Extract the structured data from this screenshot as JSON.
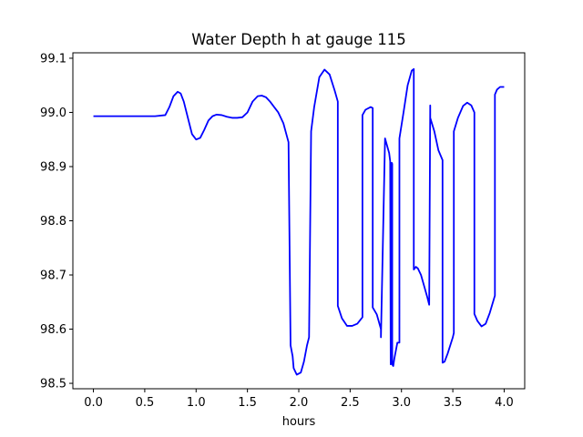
{
  "chart_data": {
    "type": "line",
    "title": "Water Depth h at gauge 115",
    "xlabel": "hours",
    "ylabel": "",
    "xlim": [
      -0.2,
      4.2
    ],
    "ylim": [
      98.49,
      99.11
    ],
    "xticks": [
      0.0,
      0.5,
      1.0,
      1.5,
      2.0,
      2.5,
      3.0,
      3.5,
      4.0
    ],
    "xtick_labels": [
      "0.0",
      "0.5",
      "1.0",
      "1.5",
      "2.0",
      "2.5",
      "3.0",
      "3.5",
      "4.0"
    ],
    "yticks": [
      98.5,
      98.6,
      98.7,
      98.8,
      98.9,
      99.0,
      99.1
    ],
    "ytick_labels": [
      "98.5",
      "98.6",
      "98.7",
      "98.8",
      "98.9",
      "99.0",
      "99.1"
    ],
    "grid": false,
    "legend": "none",
    "line_color": "#0000ff",
    "series": [
      {
        "x": [
          0.0,
          0.2,
          0.4,
          0.6,
          0.7,
          0.74,
          0.78,
          0.82,
          0.85,
          0.88,
          0.92,
          0.96,
          1.0,
          1.04,
          1.08,
          1.12,
          1.16,
          1.2,
          1.25,
          1.3,
          1.35,
          1.4,
          1.45,
          1.5,
          1.55,
          1.6,
          1.64,
          1.68,
          1.72,
          1.76,
          1.8,
          1.85,
          1.9,
          1.92,
          1.94,
          1.95,
          1.98,
          2.02,
          2.05,
          2.08,
          2.1,
          2.12,
          2.15,
          2.2,
          2.25,
          2.3,
          2.35,
          2.38,
          2.38,
          2.42,
          2.47,
          2.52,
          2.57,
          2.62,
          2.62,
          2.65,
          2.7,
          2.72,
          2.72,
          2.76,
          2.8,
          2.8,
          2.84,
          2.88,
          2.89,
          2.895,
          2.9,
          2.905,
          2.91,
          2.91,
          2.92,
          2.93,
          2.96,
          2.98,
          2.98,
          3.02,
          3.06,
          3.1,
          3.12,
          3.12,
          3.14,
          3.16,
          3.19,
          3.22,
          3.25,
          3.27,
          3.28,
          3.28,
          3.32,
          3.36,
          3.4,
          3.4,
          3.42,
          3.45,
          3.5,
          3.51,
          3.51,
          3.55,
          3.6,
          3.64,
          3.68,
          3.71,
          3.71,
          3.74,
          3.78,
          3.82,
          3.86,
          3.91,
          3.91,
          3.93,
          3.96,
          4.0
        ],
        "y": [
          98.993,
          98.993,
          98.993,
          98.993,
          98.995,
          99.01,
          99.03,
          99.038,
          99.035,
          99.02,
          98.99,
          98.96,
          98.95,
          98.953,
          98.968,
          98.985,
          98.993,
          98.996,
          98.995,
          98.992,
          98.99,
          98.99,
          98.991,
          99.0,
          99.02,
          99.03,
          99.031,
          99.028,
          99.02,
          99.01,
          99.0,
          98.98,
          98.945,
          98.57,
          98.55,
          98.528,
          98.516,
          98.52,
          98.54,
          98.57,
          98.585,
          98.965,
          99.01,
          99.065,
          99.079,
          99.07,
          99.04,
          99.02,
          98.643,
          98.62,
          98.606,
          98.606,
          98.61,
          98.622,
          98.995,
          99.005,
          99.01,
          99.008,
          98.64,
          98.627,
          98.6,
          98.585,
          98.952,
          98.925,
          98.91,
          98.535,
          98.545,
          98.907,
          98.905,
          98.535,
          98.532,
          98.545,
          98.575,
          98.575,
          98.952,
          99.0,
          99.05,
          99.077,
          99.08,
          98.71,
          98.715,
          98.712,
          98.7,
          98.68,
          98.66,
          98.645,
          99.013,
          98.99,
          98.965,
          98.93,
          98.912,
          98.538,
          98.54,
          98.555,
          98.585,
          98.593,
          98.965,
          98.99,
          99.012,
          99.018,
          99.013,
          99.0,
          98.628,
          98.615,
          98.605,
          98.61,
          98.63,
          98.662,
          99.033,
          99.042,
          99.047,
          99.047
        ]
      }
    ]
  }
}
